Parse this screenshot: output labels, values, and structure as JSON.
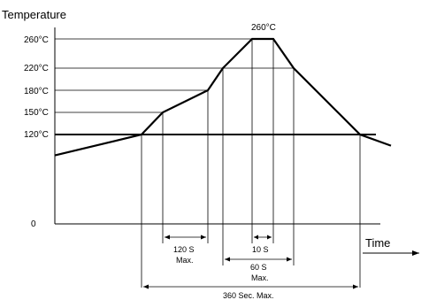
{
  "chart_data": {
    "type": "line",
    "title": "",
    "ylabel": "Temperature",
    "xlabel": "Time",
    "y_ticks": [
      "260°C",
      "220°C",
      "180°C",
      "150°C",
      "120°C",
      "0"
    ],
    "peak_label": "260°C",
    "profile_points": [
      {
        "time_marker": "start",
        "temp": 92
      },
      {
        "time_marker": "t1",
        "temp": 120
      },
      {
        "time_marker": "t2",
        "temp": 150
      },
      {
        "time_marker": "t3",
        "temp": 180
      },
      {
        "time_marker": "t4",
        "temp": 220
      },
      {
        "time_marker": "t5",
        "temp": 260
      },
      {
        "time_marker": "t6",
        "temp": 260
      },
      {
        "time_marker": "t7",
        "temp": 220
      },
      {
        "time_marker": "t8",
        "temp": 120
      },
      {
        "time_marker": "end",
        "temp": 105
      }
    ],
    "annotations": [
      {
        "label_line1": "120 S",
        "label_line2": "Max."
      },
      {
        "label_line1": "10 S",
        "label_line2": ""
      },
      {
        "label_line1": "60 S",
        "label_line2": "Max."
      },
      {
        "label_line1": "360 Sec. Max.",
        "label_line2": ""
      }
    ],
    "grid": false
  }
}
